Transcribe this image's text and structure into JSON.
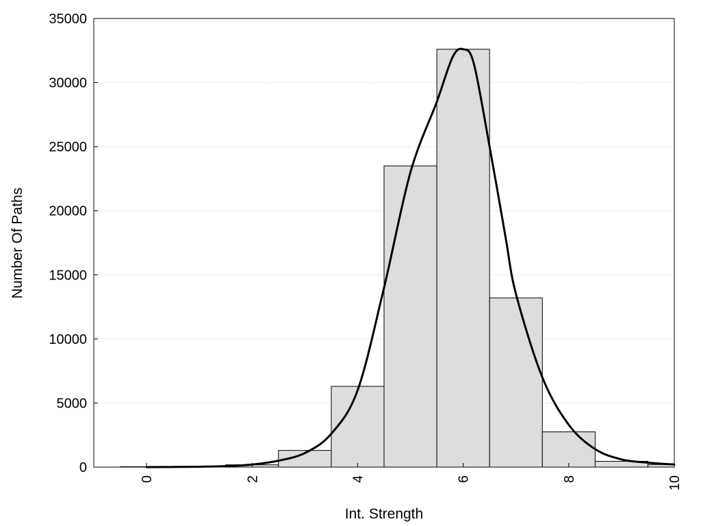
{
  "chart_data": {
    "type": "bar",
    "xlabel": "Int. Strength",
    "ylabel": "Number Of Paths",
    "xlim": [
      -1,
      10
    ],
    "ylim": [
      0,
      35000
    ],
    "x_ticks": [
      0,
      2,
      4,
      6,
      8,
      10
    ],
    "y_ticks": [
      0,
      5000,
      10000,
      15000,
      20000,
      25000,
      30000,
      35000
    ],
    "grid": "horizontal dotted",
    "legend": "none",
    "bar_fill": "#dddddd",
    "bar_edge": "#000000",
    "line_color": "#000000",
    "bars": [
      {
        "x": 0,
        "value": 30
      },
      {
        "x": 1,
        "value": 60
      },
      {
        "x": 2,
        "value": 180
      },
      {
        "x": 3,
        "value": 1300
      },
      {
        "x": 4,
        "value": 6300
      },
      {
        "x": 5,
        "value": 23500
      },
      {
        "x": 6,
        "value": 32600
      },
      {
        "x": 7,
        "value": 13200
      },
      {
        "x": 8,
        "value": 2750
      },
      {
        "x": 9,
        "value": 450
      },
      {
        "x": 10,
        "value": 200
      }
    ],
    "curve": [
      [
        0,
        0
      ],
      [
        0.5,
        10
      ],
      [
        1,
        30
      ],
      [
        1.5,
        80
      ],
      [
        2,
        200
      ],
      [
        2.5,
        500
      ],
      [
        3,
        1100
      ],
      [
        3.5,
        2600
      ],
      [
        4,
        6000
      ],
      [
        4.5,
        14000
      ],
      [
        5,
        23000
      ],
      [
        5.5,
        28500
      ],
      [
        5.8,
        32000
      ],
      [
        6,
        32600
      ],
      [
        6.2,
        31500
      ],
      [
        6.5,
        25000
      ],
      [
        6.8,
        18000
      ],
      [
        7,
        13500
      ],
      [
        7.5,
        7000
      ],
      [
        8,
        3300
      ],
      [
        8.5,
        1400
      ],
      [
        9,
        600
      ],
      [
        9.5,
        350
      ],
      [
        10,
        200
      ]
    ]
  }
}
